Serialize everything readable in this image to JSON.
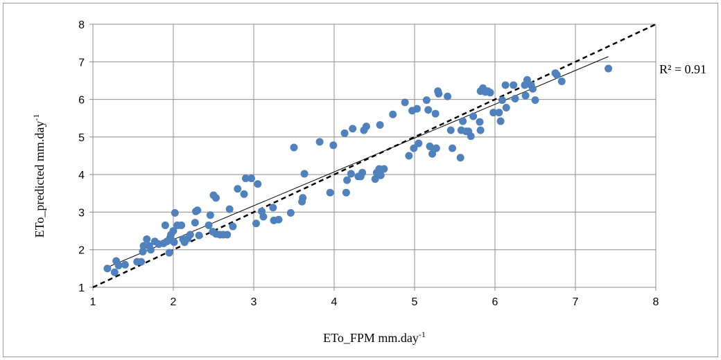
{
  "chart_data": {
    "type": "scatter",
    "title": "",
    "xlabel": "ETo_FPM mm.day",
    "xlabel_sup": "-1",
    "ylabel": "ETo_predicted mm.day",
    "ylabel_sup": "-1",
    "xlim": [
      1,
      8
    ],
    "ylim": [
      1,
      8
    ],
    "xticks": [
      "1",
      "2",
      "3",
      "4",
      "5",
      "6",
      "7",
      "8"
    ],
    "yticks": [
      "1",
      "2",
      "3",
      "4",
      "5",
      "6",
      "7",
      "8"
    ],
    "grid": true,
    "annotation": "R² = 0.91",
    "marker_color": "#4f81bd",
    "trendline": {
      "slope": 0.9,
      "intercept": 0.47,
      "x_start": 1.17,
      "x_end": 7.41,
      "color": "#000000",
      "style": "solid"
    },
    "reference_line": {
      "label": "",
      "x": [
        1,
        8
      ],
      "y": [
        1,
        8
      ],
      "color": "#000000",
      "style": "dashed"
    },
    "series": [
      {
        "values": [
          [
            1.18,
            1.5
          ],
          [
            1.27,
            1.4
          ],
          [
            1.29,
            1.7
          ],
          [
            1.32,
            1.58
          ],
          [
            1.4,
            1.6
          ],
          [
            1.55,
            1.68
          ],
          [
            1.6,
            1.68
          ],
          [
            1.62,
            1.95
          ],
          [
            1.63,
            2.1
          ],
          [
            1.67,
            2.28
          ],
          [
            1.7,
            2.1
          ],
          [
            1.72,
            2.0
          ],
          [
            1.77,
            2.22
          ],
          [
            1.82,
            2.15
          ],
          [
            1.88,
            2.17
          ],
          [
            1.9,
            2.65
          ],
          [
            1.92,
            2.22
          ],
          [
            1.95,
            1.92
          ],
          [
            1.96,
            2.32
          ],
          [
            1.97,
            2.4
          ],
          [
            1.98,
            2.25
          ],
          [
            2.0,
            2.5
          ],
          [
            2.01,
            2.2
          ],
          [
            2.02,
            2.98
          ],
          [
            2.05,
            2.65
          ],
          [
            2.1,
            2.65
          ],
          [
            2.12,
            2.28
          ],
          [
            2.14,
            2.2
          ],
          [
            2.18,
            2.3
          ],
          [
            2.21,
            2.4
          ],
          [
            2.27,
            2.72
          ],
          [
            2.28,
            3.02
          ],
          [
            2.3,
            3.05
          ],
          [
            2.32,
            2.38
          ],
          [
            2.44,
            2.65
          ],
          [
            2.46,
            2.92
          ],
          [
            2.49,
            2.48
          ],
          [
            2.5,
            3.45
          ],
          [
            2.53,
            3.38
          ],
          [
            2.53,
            2.42
          ],
          [
            2.58,
            2.4
          ],
          [
            2.62,
            2.4
          ],
          [
            2.67,
            2.4
          ],
          [
            2.7,
            3.08
          ],
          [
            2.74,
            2.62
          ],
          [
            2.8,
            3.62
          ],
          [
            2.88,
            3.48
          ],
          [
            2.9,
            3.9
          ],
          [
            2.97,
            3.9
          ],
          [
            3.03,
            2.7
          ],
          [
            3.05,
            3.75
          ],
          [
            3.1,
            3.02
          ],
          [
            3.12,
            2.88
          ],
          [
            3.24,
            3.12
          ],
          [
            3.25,
            2.78
          ],
          [
            3.31,
            2.8
          ],
          [
            3.46,
            2.98
          ],
          [
            3.5,
            4.72
          ],
          [
            3.6,
            3.28
          ],
          [
            3.61,
            3.38
          ],
          [
            3.63,
            4.02
          ],
          [
            3.82,
            4.87
          ],
          [
            3.95,
            3.52
          ],
          [
            3.99,
            4.78
          ],
          [
            4.13,
            5.1
          ],
          [
            4.15,
            3.52
          ],
          [
            4.16,
            3.85
          ],
          [
            4.21,
            4.02
          ],
          [
            4.23,
            5.22
          ],
          [
            4.3,
            3.95
          ],
          [
            4.33,
            3.95
          ],
          [
            4.35,
            4.05
          ],
          [
            4.37,
            5.18
          ],
          [
            4.4,
            5.28
          ],
          [
            4.51,
            3.88
          ],
          [
            4.53,
            4.05
          ],
          [
            4.56,
            4.15
          ],
          [
            4.57,
            5.32
          ],
          [
            4.58,
            3.98
          ],
          [
            4.62,
            4.15
          ],
          [
            4.73,
            5.6
          ],
          [
            4.88,
            5.92
          ],
          [
            4.93,
            4.5
          ],
          [
            4.97,
            5.7
          ],
          [
            4.99,
            4.7
          ],
          [
            5.03,
            5.75
          ],
          [
            5.05,
            4.83
          ],
          [
            5.15,
            5.98
          ],
          [
            5.17,
            5.72
          ],
          [
            5.19,
            4.75
          ],
          [
            5.22,
            4.55
          ],
          [
            5.24,
            4.68
          ],
          [
            5.26,
            5.62
          ],
          [
            5.27,
            4.7
          ],
          [
            5.29,
            6.22
          ],
          [
            5.3,
            6.15
          ],
          [
            5.41,
            6.08
          ],
          [
            5.45,
            5.18
          ],
          [
            5.47,
            4.7
          ],
          [
            5.57,
            4.45
          ],
          [
            5.58,
            5.18
          ],
          [
            5.6,
            5.42
          ],
          [
            5.64,
            5.15
          ],
          [
            5.67,
            5.15
          ],
          [
            5.7,
            5.02
          ],
          [
            5.73,
            5.55
          ],
          [
            5.81,
            5.4
          ],
          [
            5.82,
            5.18
          ],
          [
            5.82,
            6.22
          ],
          [
            5.85,
            6.3
          ],
          [
            5.88,
            6.2
          ],
          [
            5.91,
            6.22
          ],
          [
            5.94,
            6.18
          ],
          [
            5.98,
            5.65
          ],
          [
            6.05,
            5.65
          ],
          [
            6.07,
            5.42
          ],
          [
            6.09,
            5.98
          ],
          [
            6.13,
            6.38
          ],
          [
            6.14,
            5.78
          ],
          [
            6.23,
            6.38
          ],
          [
            6.25,
            6.02
          ],
          [
            6.37,
            6.38
          ],
          [
            6.38,
            6.1
          ],
          [
            6.4,
            6.52
          ],
          [
            6.45,
            6.38
          ],
          [
            6.47,
            6.28
          ],
          [
            6.5,
            5.98
          ],
          [
            6.75,
            6.7
          ],
          [
            6.77,
            6.65
          ],
          [
            6.83,
            6.48
          ],
          [
            7.41,
            6.82
          ]
        ]
      }
    ]
  }
}
